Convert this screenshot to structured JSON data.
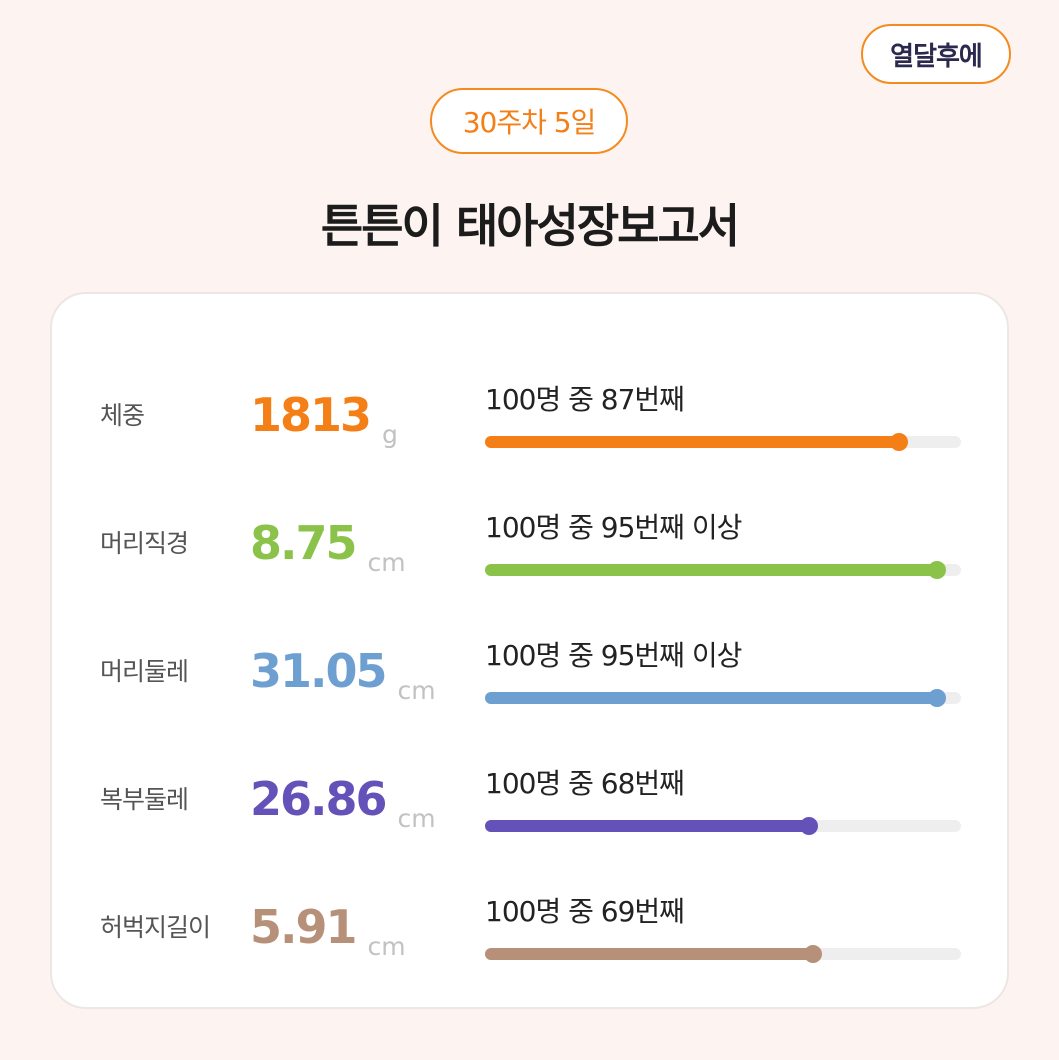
{
  "header": {
    "brand_badge": "열달후에",
    "week_badge": "30주차 5일",
    "title": "튼튼이 태아성장보고서"
  },
  "metrics": [
    {
      "label": "체중",
      "value": "1813",
      "unit": "g",
      "rank_text": "100명 중 87번째",
      "percentile": 0.87,
      "color": "#f57f17"
    },
    {
      "label": "머리직경",
      "value": "8.75",
      "unit": "cm",
      "rank_text": "100명 중 95번째 이상",
      "percentile": 0.95,
      "color": "#8bc34a"
    },
    {
      "label": "머리둘레",
      "value": "31.05",
      "unit": "cm",
      "rank_text": "100명 중 95번째 이상",
      "percentile": 0.95,
      "color": "#6e9fd1"
    },
    {
      "label": "복부둘레",
      "value": "26.86",
      "unit": "cm",
      "rank_text": "100명 중 68번째",
      "percentile": 0.68,
      "color": "#6452b8"
    },
    {
      "label": "허벅지길이",
      "value": "5.91",
      "unit": "cm",
      "rank_text": "100명 중 69번째",
      "percentile": 0.69,
      "color": "#b7907a"
    }
  ]
}
